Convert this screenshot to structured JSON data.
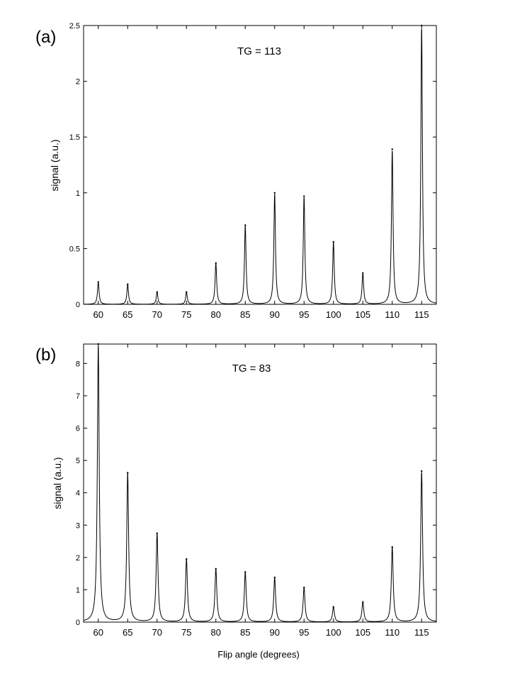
{
  "figure": {
    "xlabel": "Flip angle (degrees)"
  },
  "chart_data": [
    {
      "type": "line",
      "panel_label": "(a)",
      "annotation": "TG = 113",
      "ylabel": "signal (a.u.)",
      "xlabel": "",
      "xlim": [
        57.5,
        117.5
      ],
      "ylim": [
        0,
        2.5
      ],
      "xticks": [
        "60",
        "65",
        "70",
        "75",
        "80",
        "85",
        "90",
        "95",
        "100",
        "105",
        "110",
        "115"
      ],
      "yticks": [
        "0",
        "0.5",
        "1",
        "1.5",
        "2",
        "2.5"
      ],
      "grid": false,
      "line_color": "#000000",
      "series": [
        {
          "peaks": [
            {
              "x": 60,
              "y": 0.2
            },
            {
              "x": 65,
              "y": 0.18
            },
            {
              "x": 70,
              "y": 0.11
            },
            {
              "x": 75,
              "y": 0.11
            },
            {
              "x": 80,
              "y": 0.37
            },
            {
              "x": 85,
              "y": 0.71
            },
            {
              "x": 90,
              "y": 1.0
            },
            {
              "x": 95,
              "y": 0.97
            },
            {
              "x": 100,
              "y": 0.56
            },
            {
              "x": 105,
              "y": 0.28
            },
            {
              "x": 110,
              "y": 1.39
            },
            {
              "x": 115,
              "y": 2.5
            }
          ]
        }
      ]
    },
    {
      "type": "line",
      "panel_label": "(b)",
      "annotation": "TG = 83",
      "ylabel": "signal (a.u.)",
      "xlabel": "Flip angle (degrees)",
      "xlim": [
        57.5,
        117.5
      ],
      "ylim": [
        0,
        8.6
      ],
      "xticks": [
        "60",
        "65",
        "70",
        "75",
        "80",
        "85",
        "90",
        "95",
        "100",
        "105",
        "110",
        "115"
      ],
      "yticks": [
        "0",
        "1",
        "2",
        "3",
        "4",
        "5",
        "6",
        "7",
        "8"
      ],
      "grid": false,
      "line_color": "#000000",
      "series": [
        {
          "peaks": [
            {
              "x": 60,
              "y": 8.6
            },
            {
              "x": 65,
              "y": 4.62
            },
            {
              "x": 70,
              "y": 2.75
            },
            {
              "x": 75,
              "y": 1.95
            },
            {
              "x": 80,
              "y": 1.65
            },
            {
              "x": 85,
              "y": 1.55
            },
            {
              "x": 90,
              "y": 1.38
            },
            {
              "x": 95,
              "y": 1.07
            },
            {
              "x": 100,
              "y": 0.47
            },
            {
              "x": 105,
              "y": 0.62
            },
            {
              "x": 110,
              "y": 2.32
            },
            {
              "x": 115,
              "y": 4.67
            }
          ]
        }
      ]
    }
  ]
}
